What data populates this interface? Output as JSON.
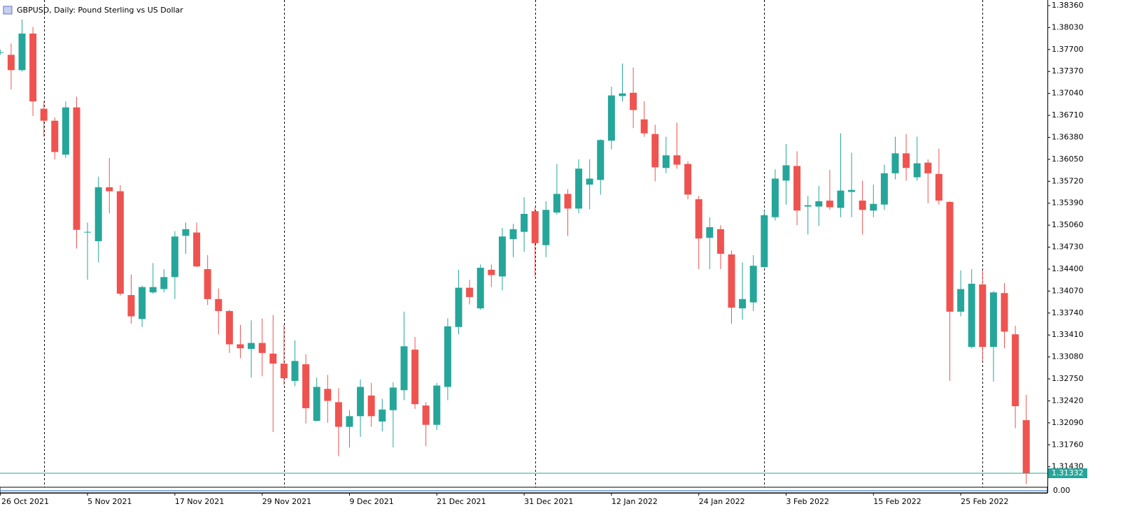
{
  "chart_data": {
    "type": "candlestick",
    "title": "GBPUSD, Daily:  Pound Sterling vs US Dollar",
    "up_color": "#26a69a",
    "down_color": "#ef5350",
    "categories": [
      "26 Oct 2021",
      null,
      null,
      null,
      null,
      null,
      null,
      null,
      "5 Nov 2021",
      null,
      null,
      null,
      null,
      null,
      null,
      null,
      "17 Nov 2021",
      null,
      null,
      null,
      null,
      null,
      null,
      null,
      "29 Nov 2021",
      null,
      null,
      null,
      null,
      null,
      null,
      null,
      "9 Dec 2021",
      null,
      null,
      null,
      null,
      null,
      null,
      null,
      "21 Dec 2021",
      null,
      null,
      null,
      null,
      null,
      null,
      null,
      "31 Dec 2021",
      null,
      null,
      null,
      null,
      null,
      null,
      null,
      "12 Jan 2022",
      null,
      null,
      null,
      null,
      null,
      null,
      null,
      "24 Jan 2022",
      null,
      null,
      null,
      null,
      null,
      null,
      null,
      "3 Feb 2022",
      null,
      null,
      null,
      null,
      null,
      null,
      null,
      "15 Feb 2022",
      null,
      null,
      null,
      null,
      null,
      null,
      null,
      "25 Feb 2022",
      null,
      null,
      null,
      null,
      null,
      null
    ],
    "open": [
      1.3765,
      1.3762,
      1.3739,
      1.3794,
      1.3681,
      1.3663,
      1.3612,
      1.3683,
      1.3495,
      1.3482,
      1.3563,
      1.3557,
      1.3401,
      1.3365,
      1.3405,
      1.341,
      1.3428,
      1.349,
      1.3495,
      1.344,
      1.3395,
      1.3377,
      1.3327,
      1.332,
      1.3329,
      1.3313,
      1.3298,
      1.3272,
      1.3297,
      1.3212,
      1.326,
      1.324,
      1.3203,
      1.3219,
      1.325,
      1.3211,
      1.3228,
      1.3258,
      1.3319,
      1.3235,
      1.3206,
      1.3263,
      1.3353,
      1.3412,
      1.3381,
      1.3439,
      1.3429,
      1.3485,
      1.3496,
      1.3527,
      1.3476,
      1.3525,
      1.3553,
      1.3531,
      1.3567,
      1.3574,
      1.3633,
      1.37,
      1.3705,
      1.3665,
      1.3643,
      1.3592,
      1.3611,
      1.3598,
      1.3545,
      1.3487,
      1.35,
      1.3462,
      1.3381,
      1.339,
      1.3443,
      1.3518,
      1.3573,
      1.3595,
      1.3534,
      1.3534,
      1.3543,
      1.3532,
      1.3556,
      1.3543,
      1.3528,
      1.3537,
      1.3584,
      1.3614,
      1.3578,
      1.36,
      1.3583,
      1.3541,
      1.3376,
      1.3323,
      1.3417,
      1.3323,
      1.3404,
      1.3342,
      1.3213
    ],
    "high": [
      1.377,
      1.3779,
      1.3815,
      1.3804,
      1.3692,
      1.3668,
      1.3692,
      1.3699,
      1.351,
      1.3579,
      1.3607,
      1.3566,
      1.3432,
      1.3415,
      1.3449,
      1.344,
      1.3497,
      1.351,
      1.351,
      1.3461,
      1.3411,
      1.3379,
      1.3356,
      1.3363,
      1.3366,
      1.3371,
      1.3356,
      1.3333,
      1.3312,
      1.3277,
      1.3281,
      1.3261,
      1.3228,
      1.3274,
      1.3269,
      1.3245,
      1.327,
      1.3376,
      1.3338,
      1.324,
      1.3269,
      1.3366,
      1.3439,
      1.3424,
      1.3447,
      1.3447,
      1.3502,
      1.3508,
      1.3548,
      1.3533,
      1.3542,
      1.3598,
      1.356,
      1.3605,
      1.3605,
      1.3635,
      1.3714,
      1.3749,
      1.3743,
      1.3692,
      1.3657,
      1.3639,
      1.366,
      1.3602,
      1.355,
      1.3518,
      1.3506,
      1.3468,
      1.345,
      1.3461,
      1.3529,
      1.359,
      1.3628,
      1.3617,
      1.355,
      1.3565,
      1.3589,
      1.3644,
      1.3615,
      1.3573,
      1.3567,
      1.3597,
      1.3639,
      1.3643,
      1.3639,
      1.3605,
      1.3621,
      1.3542,
      1.3438,
      1.344,
      1.3438,
      1.3407,
      1.3419,
      1.3355,
      1.3251
    ],
    "low": [
      1.3762,
      1.371,
      1.3737,
      1.367,
      1.3639,
      1.3605,
      1.3607,
      1.3471,
      1.3424,
      1.345,
      1.3524,
      1.34,
      1.3358,
      1.3353,
      1.3403,
      1.3405,
      1.3395,
      1.3463,
      1.3443,
      1.3386,
      1.3342,
      1.3314,
      1.3306,
      1.3277,
      1.3279,
      1.3195,
      1.3266,
      1.3264,
      1.3208,
      1.3211,
      1.3209,
      1.3159,
      1.3172,
      1.3188,
      1.3203,
      1.3196,
      1.3172,
      1.3243,
      1.323,
      1.3174,
      1.3198,
      1.3243,
      1.3342,
      1.3387,
      1.3379,
      1.3413,
      1.3408,
      1.3458,
      1.3466,
      1.3429,
      1.3458,
      1.3522,
      1.349,
      1.3524,
      1.353,
      1.3552,
      1.362,
      1.3692,
      1.3652,
      1.3639,
      1.3572,
      1.3584,
      1.3591,
      1.3545,
      1.344,
      1.344,
      1.344,
      1.3358,
      1.3364,
      1.3377,
      1.3442,
      1.3513,
      1.3537,
      1.3506,
      1.3492,
      1.3505,
      1.3529,
      1.3518,
      1.3518,
      1.3492,
      1.3518,
      1.3529,
      1.3575,
      1.3573,
      1.3573,
      1.3539,
      1.3537,
      1.3272,
      1.3369,
      1.3321,
      1.3301,
      1.3271,
      1.3321,
      1.3201,
      1.3117
    ],
    "close": [
      1.3766,
      1.3739,
      1.3794,
      1.3692,
      1.3663,
      1.3616,
      1.3683,
      1.3499,
      1.3496,
      1.3563,
      1.3557,
      1.3403,
      1.3369,
      1.3413,
      1.3413,
      1.3428,
      1.3489,
      1.35,
      1.3444,
      1.3395,
      1.3377,
      1.3327,
      1.3321,
      1.3329,
      1.3314,
      1.3298,
      1.3276,
      1.3302,
      1.3231,
      1.3263,
      1.3242,
      1.3203,
      1.3219,
      1.3263,
      1.3219,
      1.3229,
      1.3262,
      1.3324,
      1.3237,
      1.3206,
      1.3265,
      1.3354,
      1.3412,
      1.3398,
      1.3442,
      1.3431,
      1.3489,
      1.35,
      1.3523,
      1.3479,
      1.3529,
      1.3553,
      1.3531,
      1.3591,
      1.3576,
      1.3634,
      1.3701,
      1.3704,
      1.3679,
      1.3644,
      1.3593,
      1.3611,
      1.3597,
      1.3552,
      1.3486,
      1.3503,
      1.3463,
      1.3382,
      1.3395,
      1.3445,
      1.3521,
      1.3576,
      1.3596,
      1.3528,
      1.3536,
      1.3542,
      1.3533,
      1.3558,
      1.3559,
      1.3529,
      1.3538,
      1.3584,
      1.3614,
      1.3592,
      1.3599,
      1.3584,
      1.3543,
      1.3376,
      1.341,
      1.3418,
      1.3323,
      1.3405,
      1.3346,
      1.3234,
      1.31332
    ],
    "current_price": 1.31332,
    "period_separators": [
      4,
      26,
      49,
      70,
      90
    ],
    "indicator_label": "0.00",
    "ylim": [
      1.31122,
      1.38444
    ],
    "yticks": [
      {
        "value": 1.3836,
        "label": "1.38360"
      },
      {
        "value": 1.3803,
        "label": "1.38030"
      },
      {
        "value": 1.377,
        "label": "1.37700"
      },
      {
        "value": 1.3737,
        "label": "1.37370"
      },
      {
        "value": 1.3704,
        "label": "1.37040"
      },
      {
        "value": 1.3671,
        "label": "1.36710"
      },
      {
        "value": 1.3638,
        "label": "1.36380"
      },
      {
        "value": 1.3605,
        "label": "1.36050"
      },
      {
        "value": 1.3572,
        "label": "1.35720"
      },
      {
        "value": 1.3539,
        "label": "1.35390"
      },
      {
        "value": 1.3506,
        "label": "1.35060"
      },
      {
        "value": 1.3473,
        "label": "1.34730"
      },
      {
        "value": 1.344,
        "label": "1.34400"
      },
      {
        "value": 1.3407,
        "label": "1.34070"
      },
      {
        "value": 1.3374,
        "label": "1.33740"
      },
      {
        "value": 1.3341,
        "label": "1.33410"
      },
      {
        "value": 1.3308,
        "label": "1.33080"
      },
      {
        "value": 1.3275,
        "label": "1.32750"
      },
      {
        "value": 1.3242,
        "label": "1.32420"
      },
      {
        "value": 1.3209,
        "label": "1.32090"
      },
      {
        "value": 1.3176,
        "label": "1.31760"
      },
      {
        "value": 1.3143,
        "label": "1.31430"
      }
    ]
  }
}
